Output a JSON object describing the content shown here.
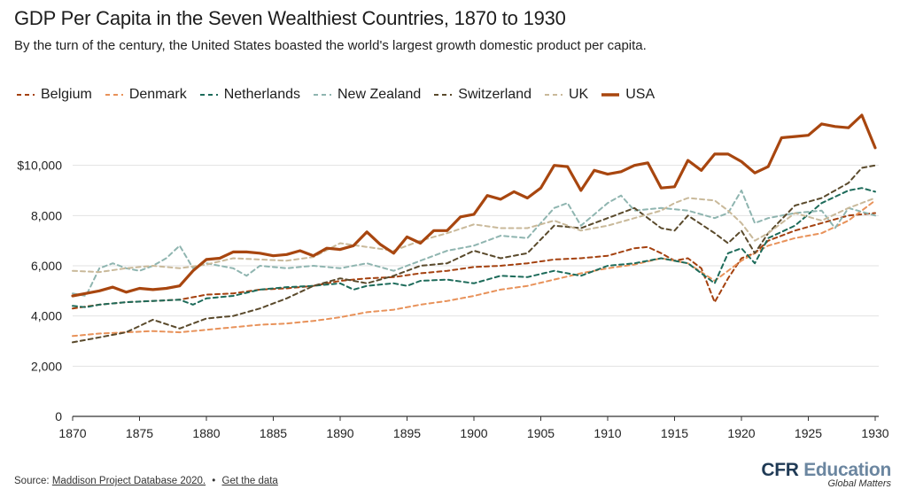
{
  "header": {
    "title": "GDP Per Capita in the Seven Wealthiest Countries, 1870 to 1930",
    "subtitle": "By the turn of the century, the United States boasted the world's largest growth domestic product per capita."
  },
  "footer": {
    "source_prefix": "Source:",
    "source_link": "Maddison Project Database 2020.",
    "bullet": "•",
    "data_link": "Get the data"
  },
  "brand": {
    "name_part1": "CFR",
    "name_part2": "Education",
    "tagline": "Global Matters"
  },
  "colors": {
    "Belgium": "#a4410f",
    "Denmark": "#e8925a",
    "Netherlands": "#1d6b5a",
    "New Zealand": "#8fb5b0",
    "Switzerland": "#5a4a2c",
    "UK": "#c9b99a",
    "USA": "#a8460f",
    "grid": "#e2e2e2",
    "axis": "#333333"
  },
  "chart_data": {
    "type": "line",
    "title": "GDP Per Capita in the Seven Wealthiest Countries, 1870 to 1930",
    "xlabel": "",
    "ylabel": "",
    "xlim": [
      1870,
      1930
    ],
    "ylim": [
      0,
      12000
    ],
    "yticks": [
      0,
      2000,
      4000,
      6000,
      8000,
      10000
    ],
    "ytick_labels": [
      "0",
      "2,000",
      "4,000",
      "6,000",
      "8,000",
      "$10,000"
    ],
    "xticks": [
      1870,
      1875,
      1880,
      1885,
      1890,
      1895,
      1900,
      1905,
      1910,
      1915,
      1920,
      1925,
      1930
    ],
    "xtick_labels": [
      "1870",
      "1875",
      "1880",
      "1885",
      "1890",
      "1895",
      "1900",
      "1905",
      "1910",
      "1915",
      "1920",
      "1925",
      "1930"
    ],
    "legend": "top-left",
    "series": [
      {
        "name": "Belgium",
        "style": "dashed",
        "x": [
          1870,
          1872,
          1874,
          1876,
          1878,
          1880,
          1882,
          1884,
          1886,
          1888,
          1890,
          1892,
          1894,
          1896,
          1898,
          1900,
          1902,
          1904,
          1906,
          1908,
          1910,
          1912,
          1913,
          1914,
          1915,
          1916,
          1917,
          1918,
          1919,
          1920,
          1921,
          1922,
          1924,
          1926,
          1928,
          1930
        ],
        "values": [
          4300,
          4450,
          4550,
          4600,
          4650,
          4850,
          4900,
          5050,
          5100,
          5200,
          5400,
          5500,
          5550,
          5700,
          5800,
          5950,
          6000,
          6100,
          6250,
          6300,
          6400,
          6700,
          6750,
          6500,
          6200,
          6300,
          5900,
          4550,
          5500,
          6300,
          6500,
          7000,
          7400,
          7700,
          8000,
          8100
        ]
      },
      {
        "name": "Denmark",
        "style": "dashed",
        "x": [
          1870,
          1872,
          1874,
          1876,
          1878,
          1880,
          1882,
          1884,
          1886,
          1888,
          1890,
          1892,
          1894,
          1896,
          1898,
          1900,
          1902,
          1904,
          1906,
          1908,
          1910,
          1912,
          1914,
          1916,
          1918,
          1920,
          1922,
          1924,
          1926,
          1928,
          1930
        ],
        "values": [
          3200,
          3300,
          3350,
          3400,
          3350,
          3450,
          3550,
          3650,
          3700,
          3800,
          3950,
          4150,
          4250,
          4450,
          4600,
          4800,
          5050,
          5200,
          5450,
          5700,
          5900,
          6050,
          6300,
          6100,
          5400,
          6200,
          6800,
          7100,
          7300,
          7800,
          8600
        ]
      },
      {
        "name": "Netherlands",
        "style": "dashed",
        "x": [
          1870,
          1871,
          1872,
          1874,
          1876,
          1878,
          1879,
          1880,
          1882,
          1884,
          1886,
          1888,
          1890,
          1891,
          1892,
          1894,
          1895,
          1896,
          1898,
          1900,
          1902,
          1904,
          1906,
          1908,
          1910,
          1912,
          1914,
          1916,
          1918,
          1919,
          1920,
          1921,
          1922,
          1924,
          1926,
          1928,
          1929,
          1930
        ],
        "values": [
          4400,
          4350,
          4450,
          4550,
          4600,
          4650,
          4450,
          4700,
          4800,
          5050,
          5150,
          5200,
          5300,
          5050,
          5200,
          5300,
          5200,
          5400,
          5450,
          5300,
          5600,
          5550,
          5800,
          5600,
          6000,
          6100,
          6300,
          6100,
          5300,
          6500,
          6700,
          6100,
          7100,
          7600,
          8500,
          9000,
          9100,
          8950
        ]
      },
      {
        "name": "New Zealand",
        "style": "dashed",
        "x": [
          1870,
          1871,
          1872,
          1873,
          1874,
          1875,
          1876,
          1877,
          1878,
          1879,
          1880,
          1882,
          1883,
          1884,
          1886,
          1888,
          1890,
          1892,
          1894,
          1896,
          1898,
          1900,
          1902,
          1904,
          1906,
          1907,
          1908,
          1910,
          1911,
          1912,
          1914,
          1916,
          1918,
          1919,
          1920,
          1921,
          1922,
          1924,
          1926,
          1927,
          1928,
          1930
        ],
        "values": [
          4900,
          4800,
          5900,
          6100,
          5900,
          5800,
          6000,
          6300,
          6800,
          5900,
          6100,
          5900,
          5600,
          6000,
          5900,
          6000,
          5900,
          6100,
          5800,
          6200,
          6600,
          6800,
          7200,
          7100,
          8300,
          8500,
          7600,
          8500,
          8800,
          8200,
          8300,
          8200,
          7900,
          8100,
          9000,
          7700,
          7900,
          8100,
          8200,
          7500,
          8300,
          8000
        ]
      },
      {
        "name": "Switzerland",
        "style": "dashed",
        "x": [
          1870,
          1872,
          1874,
          1876,
          1878,
          1880,
          1882,
          1884,
          1886,
          1888,
          1890,
          1892,
          1894,
          1896,
          1898,
          1900,
          1902,
          1904,
          1906,
          1908,
          1910,
          1912,
          1914,
          1915,
          1916,
          1918,
          1919,
          1920,
          1921,
          1922,
          1924,
          1926,
          1928,
          1929,
          1930
        ],
        "values": [
          2950,
          3150,
          3350,
          3850,
          3500,
          3900,
          4000,
          4300,
          4700,
          5200,
          5500,
          5300,
          5600,
          6000,
          6100,
          6600,
          6300,
          6500,
          7600,
          7500,
          7900,
          8300,
          7500,
          7400,
          8000,
          7300,
          6900,
          7400,
          6500,
          7300,
          8400,
          8700,
          9300,
          9900,
          10000
        ]
      },
      {
        "name": "UK",
        "style": "dashed",
        "x": [
          1870,
          1872,
          1874,
          1876,
          1878,
          1880,
          1882,
          1884,
          1886,
          1888,
          1890,
          1892,
          1894,
          1896,
          1898,
          1900,
          1902,
          1904,
          1906,
          1908,
          1910,
          1912,
          1914,
          1915,
          1916,
          1918,
          1919,
          1920,
          1921,
          1922,
          1924,
          1926,
          1928,
          1930
        ],
        "values": [
          5800,
          5750,
          5900,
          6000,
          5900,
          6050,
          6300,
          6250,
          6200,
          6350,
          6900,
          6750,
          6600,
          7000,
          7300,
          7650,
          7500,
          7500,
          7800,
          7400,
          7600,
          7900,
          8200,
          8500,
          8700,
          8600,
          8200,
          7700,
          7000,
          7300,
          8100,
          7800,
          8300,
          8700
        ]
      },
      {
        "name": "USA",
        "style": "solid",
        "x": [
          1870,
          1871,
          1872,
          1873,
          1874,
          1875,
          1876,
          1877,
          1878,
          1879,
          1880,
          1881,
          1882,
          1883,
          1884,
          1885,
          1886,
          1887,
          1888,
          1889,
          1890,
          1891,
          1892,
          1893,
          1894,
          1895,
          1896,
          1897,
          1898,
          1899,
          1900,
          1901,
          1902,
          1903,
          1904,
          1905,
          1906,
          1907,
          1908,
          1909,
          1910,
          1911,
          1912,
          1913,
          1914,
          1915,
          1916,
          1917,
          1918,
          1919,
          1920,
          1921,
          1922,
          1923,
          1924,
          1925,
          1926,
          1927,
          1928,
          1929,
          1930
        ],
        "values": [
          4800,
          4900,
          5000,
          5150,
          4950,
          5100,
          5050,
          5100,
          5200,
          5800,
          6250,
          6300,
          6550,
          6550,
          6500,
          6400,
          6450,
          6600,
          6400,
          6700,
          6650,
          6800,
          7350,
          6850,
          6500,
          7150,
          6900,
          7400,
          7400,
          7950,
          8050,
          8800,
          8650,
          8950,
          8700,
          9100,
          10000,
          9950,
          9000,
          9800,
          9650,
          9750,
          10000,
          10100,
          9100,
          9150,
          10200,
          9800,
          10450,
          10450,
          10150,
          9700,
          9950,
          11100,
          11150,
          11200,
          11650,
          11550,
          11500,
          12000,
          10700
        ]
      }
    ]
  }
}
